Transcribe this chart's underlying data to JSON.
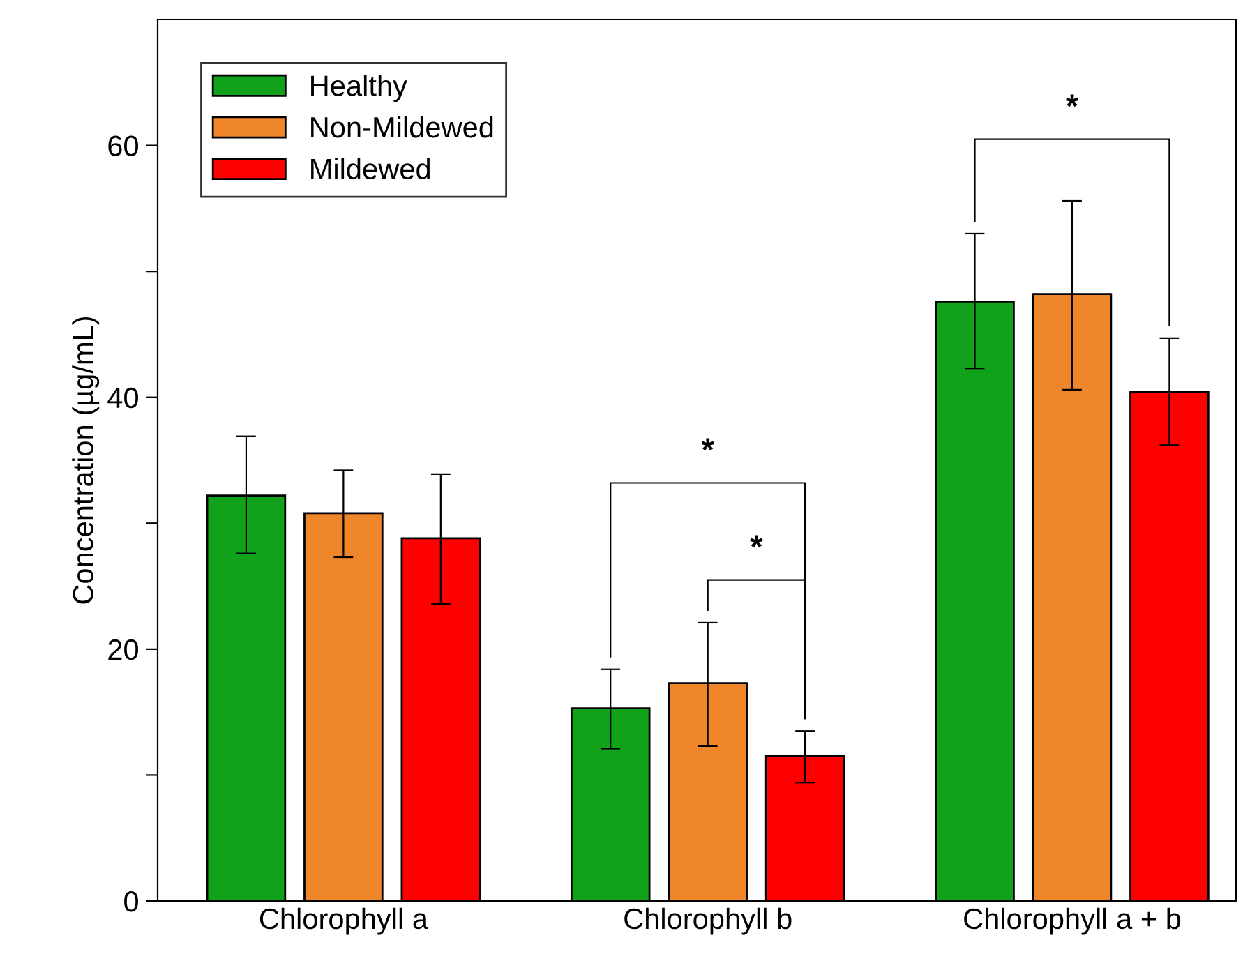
{
  "chart_data": {
    "type": "bar",
    "ylabel": "Concentration (µg/mL)",
    "categories": [
      "Chlorophyll a",
      "Chlorophyll b",
      "Chlorophyll a + b"
    ],
    "series": [
      {
        "name": "Healthy",
        "color": "#11a11a",
        "values": [
          32.2,
          15.3,
          47.6
        ],
        "errors": [
          [
            27.6,
            36.9
          ],
          [
            12.1,
            18.4
          ],
          [
            42.3,
            53.0
          ]
        ]
      },
      {
        "name": "Non-Mildewed",
        "color": "#f0862a",
        "values": [
          30.8,
          17.3,
          48.2
        ],
        "errors": [
          [
            27.3,
            34.2
          ],
          [
            12.3,
            22.1
          ],
          [
            40.6,
            55.6
          ]
        ]
      },
      {
        "name": "Mildewed",
        "color": "#ff0000",
        "values": [
          28.8,
          11.5,
          40.4
        ],
        "errors": [
          [
            23.6,
            33.9
          ],
          [
            9.4,
            13.5
          ],
          [
            36.2,
            44.7
          ]
        ]
      }
    ],
    "ylim": [
      0,
      70
    ],
    "yticks": [
      0,
      {
        "value": 10,
        "label": null
      },
      20,
      {
        "value": 30,
        "label": null
      },
      40,
      {
        "value": 50,
        "label": null
      },
      60
    ],
    "annotations": [
      "*",
      "*",
      "*"
    ],
    "legend": "top left",
    "grid": false
  }
}
